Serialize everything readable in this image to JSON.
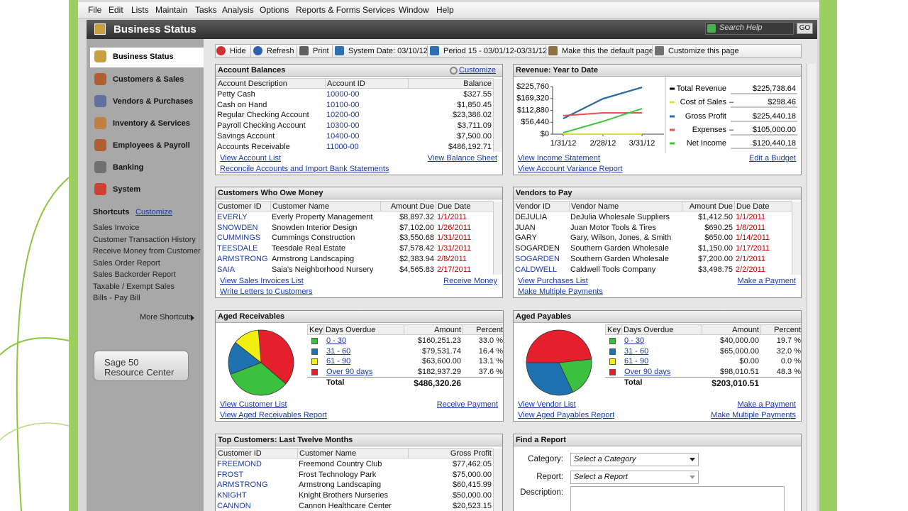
{
  "menu": [
    "File",
    "Edit",
    "Lists",
    "Maintain",
    "Tasks",
    "Analysis",
    "Options",
    "Reports & Forms",
    "Services",
    "Window",
    "Help"
  ],
  "header": {
    "title": "Business Status",
    "search": "Search Help",
    "go": "GO"
  },
  "sidebar": {
    "nav": [
      "Business Status",
      "Customers & Sales",
      "Vendors & Purchases",
      "Inventory & Services",
      "Employees & Payroll",
      "Banking",
      "System"
    ],
    "shortcuts_title": "Shortcuts",
    "customize": "Customize",
    "shortcuts": [
      "Sales Invoice",
      "Customer Transaction History",
      "Receive Money from Customer",
      "Sales Order Report",
      "Sales Backorder Report",
      "Taxable / Exempt Sales",
      "Bills - Pay Bill"
    ],
    "more": "More Shortcuts",
    "resource": [
      "Sage 50",
      "Resource Center"
    ]
  },
  "toolbar": [
    "Hide",
    "Refresh",
    "Print",
    "System Date: 03/10/12",
    "Period 15 - 03/01/12-03/31/12",
    "Make this the default page",
    "Customize this page"
  ],
  "account_balances": {
    "title": "Account Balances",
    "customize": "Customize",
    "columns": [
      "Account Description",
      "Account ID",
      "Balance"
    ],
    "rows": [
      [
        "Petty Cash",
        "10000-00",
        "$327.55"
      ],
      [
        "Cash on Hand",
        "10100-00",
        "$1,850.45"
      ],
      [
        "Regular Checking Account",
        "10200-00",
        "$23,386.02"
      ],
      [
        "Payroll Checking Account",
        "10300-00",
        "$3,711.09"
      ],
      [
        "Savings Account",
        "10400-00",
        "$7,500.00"
      ],
      [
        "Accounts Receivable",
        "11000-00",
        "$486,192.71"
      ]
    ],
    "links_left": [
      "View Account List",
      "Reconcile Accounts and Import Bank Statements"
    ],
    "links_right": [
      "View Balance Sheet"
    ]
  },
  "revenue": {
    "title": "Revenue: Year to Date",
    "chart": {
      "type": "line",
      "x": [
        "1/31/12",
        "2/28/12",
        "3/31/12"
      ],
      "ylim": [
        0,
        225760
      ],
      "yticks": [
        {
          "value": 0,
          "label": "$0"
        },
        {
          "value": 56440,
          "label": "$56,440"
        },
        {
          "value": 112880,
          "label": "$112,880"
        },
        {
          "value": 169320,
          "label": "$169,320"
        },
        {
          "value": 225760,
          "label": "$225,760"
        }
      ],
      "series": [
        {
          "name": "Total Revenue",
          "color": "#000000",
          "values": [
            74100,
            168100,
            222300
          ],
          "total": "$225,738.64"
        },
        {
          "name": "Cost of Sales",
          "op": "–",
          "color": "#e0dc3c",
          "values": [
            0,
            0,
            298
          ],
          "total": "$298.46"
        },
        {
          "name": "Gross Profit",
          "color": "#2a6ea6",
          "values": [
            74000,
            168000,
            222000
          ],
          "total": "$225,440.18"
        },
        {
          "name": "Expenses",
          "op": "–",
          "color": "#e85050",
          "values": [
            87600,
            101000,
            101000
          ],
          "total": "$105,000.00"
        },
        {
          "name": "Net Income",
          "color": "#44c244",
          "values": [
            6700,
            60600,
            121000
          ],
          "total": "$120,440.18"
        }
      ]
    },
    "links_left": [
      "View Income Statement",
      "View Account Variance Report"
    ],
    "links_right": [
      "Edit a Budget"
    ]
  },
  "customers_owe": {
    "title": "Customers Who Owe Money",
    "columns": [
      "Customer ID",
      "Customer Name",
      "Amount Due",
      "Due Date"
    ],
    "rows": [
      [
        "EVERLY",
        "Everly Property Management",
        "$8,897.32",
        "1/1/2011"
      ],
      [
        "SNOWDEN",
        "Snowden Interior Design",
        "$7,102.00",
        "1/26/2011"
      ],
      [
        "CUMMINGS",
        "Cummings Construction",
        "$3,550.68",
        "1/31/2011"
      ],
      [
        "TEESDALE",
        "Teesdale Real Estate",
        "$7,578.42",
        "1/31/2011"
      ],
      [
        "ARMSTRONG",
        "Armstrong Landscaping",
        "$2,383.94",
        "2/8/2011"
      ],
      [
        "SAIA",
        "Saia's Neighborhood Nursery",
        "$4,565.83",
        "2/17/2011"
      ]
    ],
    "links_left": [
      "View Sales Invoices List",
      "Write Letters to Customers"
    ],
    "links_right": [
      "Receive Money"
    ]
  },
  "vendors_to_pay": {
    "title": "Vendors to Pay",
    "columns": [
      "Vendor ID",
      "Vendor Name",
      "Amount Due",
      "Due Date"
    ],
    "rows": [
      [
        "DEJULIA",
        "DeJulia Wholesale Suppliers",
        "$1,412.50",
        "1/1/2011"
      ],
      [
        "JUAN",
        "Juan Motor Tools & Tires",
        "$690.25",
        "1/8/2011"
      ],
      [
        "GARY",
        "Gary, Wilson, Jones, & Smith",
        "$650.00",
        "1/14/2011"
      ],
      [
        "SOGARDEN",
        "Southern Garden Wholesale",
        "$1,150.00",
        "1/17/2011"
      ],
      [
        "SOGARDEN",
        "Southern Garden Wholesale",
        "$7,200.00",
        "2/1/2011"
      ],
      [
        "CALDWELL",
        "Caldwell Tools Company",
        "$3,498.75",
        "2/2/2011"
      ]
    ],
    "links_left": [
      "View Purchases List",
      "Make Multiple Payments"
    ],
    "links_right": [
      "Make a Payment"
    ]
  },
  "aged_receivables": {
    "title": "Aged Receivables",
    "columns": [
      "Key",
      "Days Overdue",
      "Amount",
      "Percent"
    ],
    "rows": [
      {
        "color": "#3cc040",
        "range": "0 - 30",
        "amount": "$160,251.23",
        "percent": {
          "value": 33.0,
          "label": "33.0 %"
        }
      },
      {
        "color": "#1f72b0",
        "range": "31 - 60",
        "amount": "$79,531.74",
        "percent": {
          "value": 16.4,
          "label": "16.4 %"
        }
      },
      {
        "color": "#f2ee10",
        "range": "61 - 90",
        "amount": "$63,600.00",
        "percent": {
          "value": 13.1,
          "label": "13.1 %"
        }
      },
      {
        "color": "#e5202c",
        "range": "Over 90 days",
        "amount": "$182,937.29",
        "percent": {
          "value": 37.6,
          "label": "37.6 %"
        }
      }
    ],
    "total": {
      "label": "Total",
      "amount": "$486,320.26"
    },
    "links_left": [
      "View Customer List",
      "View Aged Receivables Report"
    ],
    "links_right": [
      "Receive Payment"
    ]
  },
  "aged_payables": {
    "title": "Aged Payables",
    "columns": [
      "Key",
      "Days Overdue",
      "Amount",
      "Percent"
    ],
    "rows": [
      {
        "color": "#3cc040",
        "range": "0 - 30",
        "amount": "$40,000.00",
        "percent": {
          "value": 19.7,
          "label": "19.7 %"
        }
      },
      {
        "color": "#1f72b0",
        "range": "31 - 60",
        "amount": "$65,000.00",
        "percent": {
          "value": 32.0,
          "label": "32.0 %"
        }
      },
      {
        "color": "#f2ee10",
        "range": "61 - 90",
        "amount": "$0.00",
        "percent": {
          "value": 0.0,
          "label": "0.0 %"
        }
      },
      {
        "color": "#e5202c",
        "range": "Over 90 days",
        "amount": "$98,010.51",
        "percent": {
          "value": 48.3,
          "label": "48.3 %"
        }
      }
    ],
    "total": {
      "label": "Total",
      "amount": "$203,010.51"
    },
    "links_left": [
      "View Vendor List",
      "View Aged Payables Report"
    ],
    "links_right": [
      "Make a Payment",
      "Make Multiple Payments"
    ]
  },
  "top_customers": {
    "title": "Top Customers: Last Twelve Months",
    "columns": [
      "Customer ID",
      "Customer Name",
      "Gross Profit"
    ],
    "rows": [
      [
        "FREEMOND",
        "Freemond Country Club",
        "$77,462.05"
      ],
      [
        "FROST",
        "Frost Technology Park",
        "$75,000.00"
      ],
      [
        "ARMSTRONG",
        "Armstrong Landscaping",
        "$60,415.99"
      ],
      [
        "KNIGHT",
        "Knight Brothers Nurseries",
        "$50,000.00"
      ],
      [
        "CANNON",
        "Cannon Healthcare Center",
        "$20,523.15"
      ]
    ]
  },
  "find_report": {
    "title": "Find a Report",
    "fields": [
      {
        "label": "Category:",
        "placeholder": "Select a Category"
      },
      {
        "label": "Report:",
        "placeholder": "Select a Report"
      },
      {
        "label": "Description:"
      }
    ]
  }
}
